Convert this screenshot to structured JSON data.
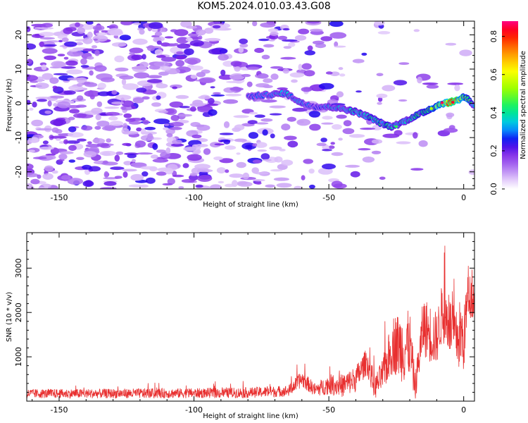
{
  "title": "KOM5.2024.010.03.43.G08",
  "chart_data": [
    {
      "type": "heatmap",
      "xlabel": "Height of straight line (km)",
      "ylabel": "Frequency (Hz)",
      "xlim": [
        -162,
        4
      ],
      "ylim": [
        -25,
        24
      ],
      "xticks": [
        "-150",
        "-100",
        "-50",
        "0"
      ],
      "yticks": [
        "20",
        "10",
        "0",
        "-10",
        "-20"
      ],
      "colorbar": {
        "label": "Normalized spectral amplitude",
        "range": [
          0,
          0.88
        ],
        "ticks": [
          "0.0",
          "0.2",
          "0.4",
          "0.6",
          "0.8"
        ],
        "colors": [
          "#ffffff",
          "#d8b8f8",
          "#8a2be2",
          "#0000ff",
          "#00c0ff",
          "#00ff80",
          "#c0ff00",
          "#ffff00",
          "#ff8000",
          "#ff0000",
          "#ff0080"
        ]
      },
      "ridge": {
        "x": [
          -80,
          -72,
          -66,
          -60,
          -55,
          -50,
          -45,
          -40,
          -35,
          -30,
          -27,
          -24,
          -20,
          -16,
          -12,
          -8,
          -5,
          -2,
          0,
          2,
          4
        ],
        "y": [
          2,
          2.5,
          3,
          0,
          -1,
          -1,
          -1.5,
          -2.5,
          -4,
          -6,
          -6.8,
          -6,
          -4.5,
          -3,
          -1.5,
          0,
          0.3,
          1,
          2,
          1,
          -1
        ],
        "amplitude": [
          0.25,
          0.3,
          0.35,
          0.3,
          0.28,
          0.32,
          0.35,
          0.38,
          0.4,
          0.4,
          0.38,
          0.35,
          0.4,
          0.45,
          0.5,
          0.6,
          0.85,
          0.7,
          0.55,
          0.5,
          0.3
        ]
      },
      "noise_region_x": [
        -162,
        -60
      ],
      "noise_amplitude_range": [
        0.05,
        0.25
      ]
    },
    {
      "type": "line",
      "xlabel": "Height of straight line (km)",
      "ylabel": "SNR (10 * v/v)",
      "xlim": [
        -162,
        4
      ],
      "ylim": [
        0,
        3800
      ],
      "xticks": [
        "-150",
        "-100",
        "-50",
        "0"
      ],
      "yticks": [
        "1000",
        "2000",
        "3000"
      ],
      "color": "#e83030",
      "envelope": {
        "x": [
          -162,
          -140,
          -120,
          -100,
          -80,
          -65,
          -60,
          -55,
          -50,
          -45,
          -40,
          -36,
          -33,
          -30,
          -26,
          -22,
          -20,
          -18,
          -15,
          -12,
          -10,
          -8,
          -5,
          -3,
          -1,
          0,
          1,
          2,
          4
        ],
        "mean": [
          170,
          170,
          175,
          180,
          190,
          230,
          500,
          250,
          380,
          350,
          500,
          900,
          300,
          600,
          1300,
          1200,
          1300,
          300,
          1700,
          1500,
          1400,
          2000,
          1700,
          1400,
          1500,
          1300,
          2100,
          2400,
          2300
        ],
        "spread": [
          140,
          140,
          150,
          150,
          160,
          170,
          250,
          200,
          300,
          350,
          400,
          400,
          350,
          500,
          900,
          1100,
          1000,
          400,
          900,
          900,
          800,
          900,
          900,
          800,
          1200,
          900,
          900,
          700,
          600
        ]
      }
    }
  ]
}
